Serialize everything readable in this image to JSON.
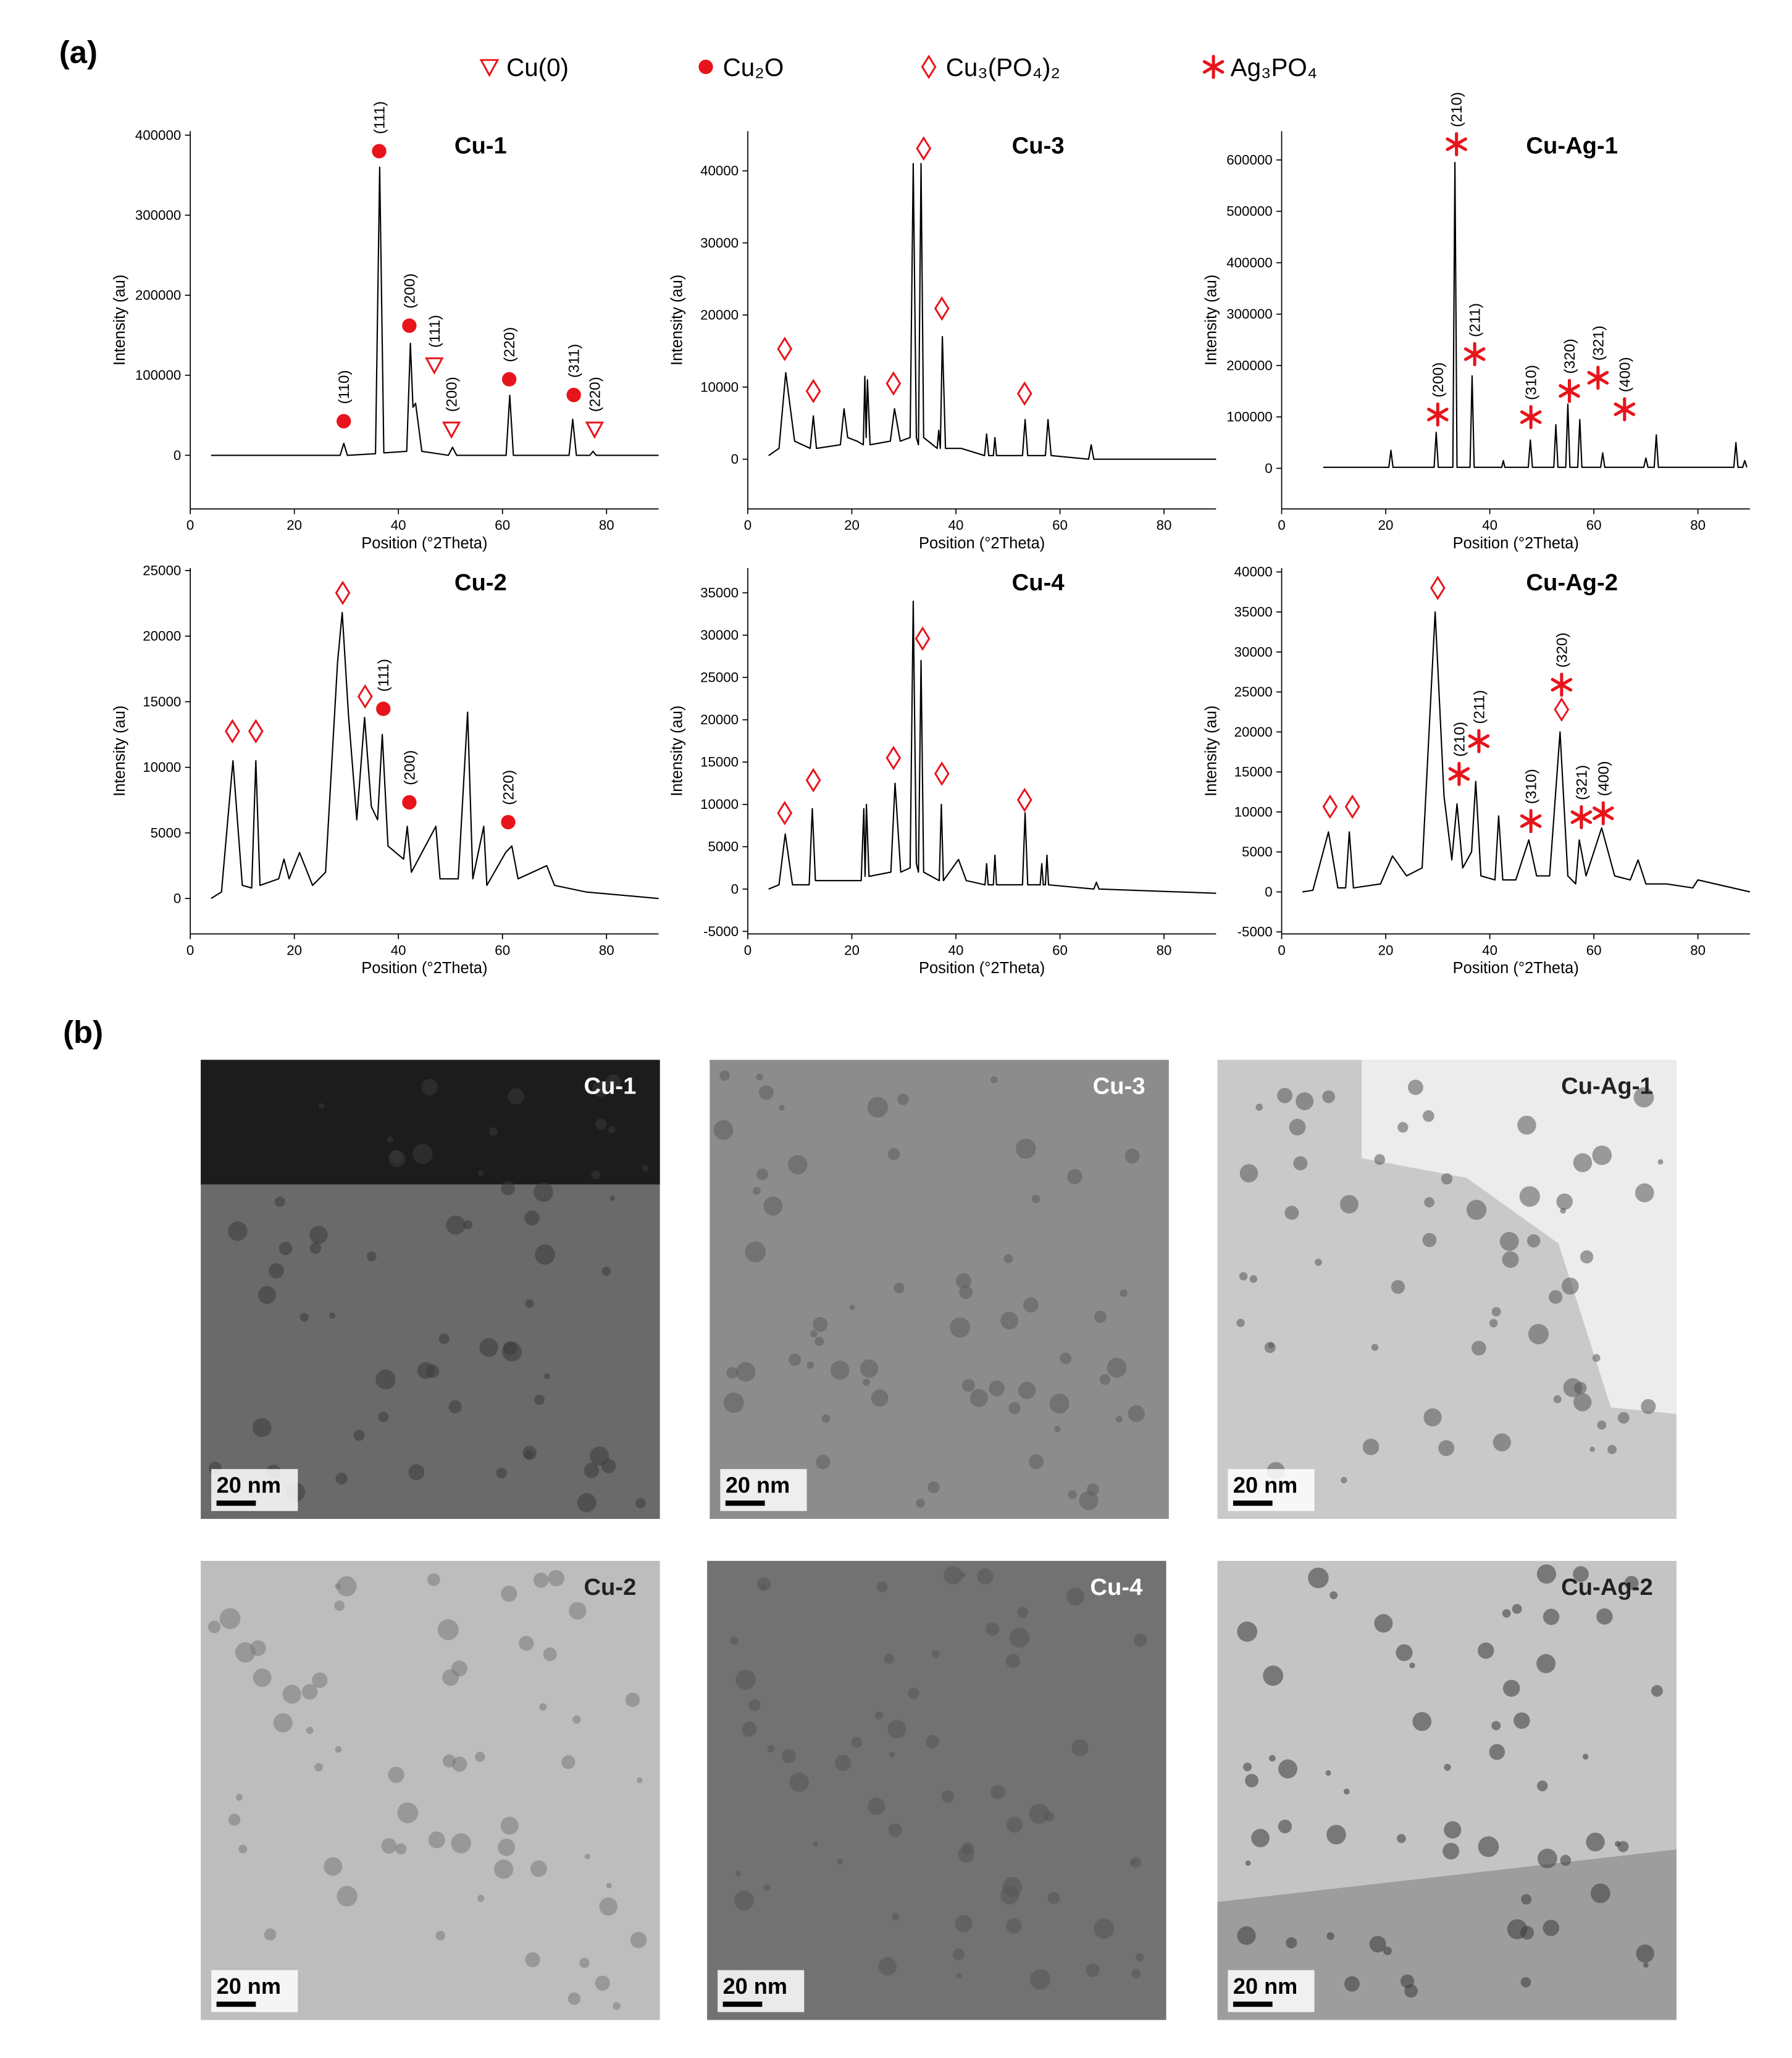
{
  "panel_labels": [
    "(a)",
    "(b)"
  ],
  "marker_color": "#e8141b",
  "legend": [
    {
      "marker": "triangle",
      "label": "Cu(0)"
    },
    {
      "marker": "circle",
      "label": "Cu₂O"
    },
    {
      "marker": "diamond",
      "label": "Cu₃(PO₄)₂"
    },
    {
      "marker": "asterisk",
      "label": "Ag₃PO₄"
    }
  ],
  "chart_data": [
    {
      "type": "line",
      "title": "Cu-1",
      "x_label": "Position (°2Theta)",
      "y_label": "Intensity (au)",
      "color": "#000000",
      "xlim": [
        0,
        90
      ],
      "xticks": [
        0,
        20,
        40,
        60,
        80
      ],
      "ylim": [
        -67000,
        405000
      ],
      "yticks": [
        0,
        100000,
        200000,
        300000,
        400000
      ],
      "x": [
        4,
        28.8,
        29.5,
        30.2,
        35.6,
        36.4,
        37.2,
        41.6,
        42.3,
        42.8,
        43.3,
        44.5,
        49.6,
        50.4,
        51.2,
        60.7,
        61.4,
        62.1,
        72.8,
        73.5,
        74.2,
        76.8,
        77.4,
        78,
        90
      ],
      "values": [
        0,
        0,
        15000,
        0,
        2000,
        360000,
        3000,
        5000,
        140000,
        60000,
        65000,
        5000,
        0,
        10000,
        0,
        0,
        75000,
        0,
        0,
        45000,
        0,
        0,
        5000,
        0,
        0
      ],
      "annotations": [
        {
          "x": 29.5,
          "y": 42600,
          "phase": 1,
          "label": "(110)"
        },
        {
          "x": 36.3,
          "y": 380000,
          "phase": 1,
          "label": "(111)"
        },
        {
          "x": 42.1,
          "y": 162000,
          "phase": 1,
          "label": "(200)"
        },
        {
          "x": 46.9,
          "y": 113000,
          "phase": 0,
          "label": "(111)"
        },
        {
          "x": 50.2,
          "y": 32800,
          "phase": 0,
          "label": "(200)"
        },
        {
          "x": 61.3,
          "y": 95000,
          "phase": 1,
          "label": "(220)"
        },
        {
          "x": 73.7,
          "y": 75400,
          "phase": 1,
          "label": "(311)"
        },
        {
          "x": 77.7,
          "y": 32800,
          "phase": 0,
          "label": "(220)"
        }
      ]
    },
    {
      "type": "line",
      "title": "Cu-3",
      "x_label": "Position (°2Theta)",
      "y_label": "Intensity (au)",
      "color": "#000000",
      "xlim": [
        0,
        90
      ],
      "xticks": [
        0,
        20,
        40,
        60,
        80
      ],
      "ylim": [
        -6900,
        45500
      ],
      "yticks": [
        0,
        10000,
        20000,
        30000,
        40000
      ],
      "x": [
        4,
        6,
        7.3,
        9,
        12,
        12.6,
        13.2,
        17.8,
        18.5,
        19.2,
        21,
        22.2,
        22.5,
        22.75,
        23,
        23.5,
        27.4,
        28.2,
        29.3,
        31.2,
        31.8,
        32.4,
        32.8,
        33.3,
        33.8,
        36.4,
        36.7,
        37.0,
        37.4,
        38,
        41,
        45.5,
        45.9,
        46.3,
        47.2,
        47.5,
        47.8,
        52.8,
        53.3,
        53.8,
        57.2,
        57.7,
        58.3,
        65.5,
        66,
        66.5,
        90
      ],
      "values": [
        500,
        1500,
        12000,
        2500,
        1500,
        6000,
        1500,
        2000,
        7000,
        3000,
        2500,
        2000,
        11500,
        3000,
        11000,
        2000,
        2500,
        7000,
        2500,
        3000,
        41000,
        3000,
        2000,
        41000,
        3000,
        1500,
        4000,
        1500,
        17000,
        1500,
        1500,
        500,
        3500,
        500,
        500,
        3000,
        500,
        500,
        5500,
        500,
        500,
        5500,
        500,
        0,
        2000,
        0,
        0
      ],
      "annotations": [
        {
          "x": 7.1,
          "y": 15300,
          "phase": 2
        },
        {
          "x": 12.6,
          "y": 9450,
          "phase": 2
        },
        {
          "x": 28.0,
          "y": 10500,
          "phase": 2
        },
        {
          "x": 33.8,
          "y": 43100,
          "phase": 2
        },
        {
          "x": 37.3,
          "y": 20900,
          "phase": 2
        },
        {
          "x": 53.2,
          "y": 9100,
          "phase": 2
        }
      ]
    },
    {
      "type": "line",
      "title": "Cu-Ag-1",
      "x_label": "Position (°2Theta)",
      "y_label": "Intensity (au)",
      "color": "#000000",
      "xlim": [
        0,
        90
      ],
      "xticks": [
        0,
        20,
        40,
        60,
        80
      ],
      "ylim": [
        -79000,
        656000
      ],
      "yticks": [
        0,
        100000,
        200000,
        300000,
        400000,
        500000,
        600000
      ],
      "x": [
        8,
        20.6,
        21,
        21.4,
        29.3,
        29.7,
        30.1,
        32.9,
        33.3,
        33.7,
        36.2,
        36.6,
        37,
        42.3,
        42.6,
        42.9,
        47.4,
        47.8,
        48.2,
        52.3,
        52.7,
        53.1,
        54.6,
        55,
        55.4,
        56.9,
        57.3,
        57.7,
        61.3,
        61.7,
        62.1,
        69.6,
        70,
        70.4,
        71.6,
        72,
        72.4,
        86.9,
        87.3,
        87.7,
        88.6,
        89,
        89.4
      ],
      "values": [
        2000,
        2000,
        35000,
        2000,
        2000,
        70000,
        2000,
        2000,
        595000,
        2000,
        2000,
        180000,
        2000,
        2000,
        15000,
        2000,
        2000,
        55000,
        2000,
        2000,
        85000,
        2000,
        2000,
        125000,
        2000,
        2000,
        95000,
        2000,
        2000,
        30000,
        2000,
        2000,
        20000,
        2000,
        2000,
        65000,
        2000,
        2000,
        50000,
        2000,
        2000,
        15000,
        2000
      ],
      "annotations": [
        {
          "x": 33.6,
          "y": 630600,
          "phase": 3,
          "label": "(210)"
        },
        {
          "x": 37.1,
          "y": 222100,
          "phase": 3,
          "label": "(211)"
        },
        {
          "x": 30.0,
          "y": 104700,
          "phase": 3,
          "label": "(200)"
        },
        {
          "x": 47.9,
          "y": 99600,
          "phase": 3,
          "label": "(310)"
        },
        {
          "x": 55.3,
          "y": 150600,
          "phase": 3,
          "label": "(320)"
        },
        {
          "x": 60.8,
          "y": 176200,
          "phase": 3,
          "label": "(321)"
        },
        {
          "x": 65.9,
          "y": 114900,
          "phase": 3,
          "label": "(400)"
        }
      ]
    },
    {
      "type": "line",
      "title": "Cu-2",
      "x_label": "Position (°2Theta)",
      "y_label": "Intensity (au)",
      "color": "#000000",
      "xlim": [
        0,
        90
      ],
      "xticks": [
        0,
        20,
        40,
        60,
        80
      ],
      "ylim": [
        -2700,
        25200
      ],
      "yticks": [
        0,
        5000,
        10000,
        15000,
        20000,
        25000
      ],
      "x": [
        4,
        6,
        8.2,
        10,
        11.8,
        12.6,
        13.4,
        17,
        18,
        19,
        21,
        23.5,
        26,
        28.3,
        29.2,
        30.4,
        32,
        33.5,
        34.8,
        36,
        36.9,
        38,
        41,
        41.7,
        42.5,
        47.2,
        48,
        51.5,
        53.3,
        54.3,
        56.4,
        57,
        60.6,
        61.8,
        63,
        68.5,
        70,
        76,
        90
      ],
      "values": [
        0,
        500,
        10500,
        1000,
        800,
        10500,
        1000,
        1500,
        3000,
        1500,
        3500,
        1000,
        2000,
        18000,
        21800,
        14000,
        6000,
        13800,
        7000,
        6000,
        12500,
        4000,
        3000,
        5500,
        2000,
        5500,
        1500,
        1500,
        14200,
        1500,
        5500,
        1000,
        3500,
        4000,
        1500,
        2500,
        1000,
        500,
        0
      ],
      "annotations": [
        {
          "x": 8.1,
          "y": 12750,
          "phase": 2
        },
        {
          "x": 12.6,
          "y": 12750,
          "phase": 2
        },
        {
          "x": 29.3,
          "y": 23300,
          "phase": 2
        },
        {
          "x": 33.6,
          "y": 15400,
          "phase": 2
        },
        {
          "x": 37.1,
          "y": 14460,
          "phase": 1,
          "label": "(111)"
        },
        {
          "x": 42.1,
          "y": 7330,
          "phase": 1,
          "label": "(200)"
        },
        {
          "x": 61.1,
          "y": 5820,
          "phase": 1,
          "label": "(220)"
        }
      ]
    },
    {
      "type": "line",
      "title": "Cu-4",
      "x_label": "Position (°2Theta)",
      "y_label": "Intensity (au)",
      "color": "#000000",
      "xlim": [
        0,
        90
      ],
      "xticks": [
        0,
        20,
        40,
        60,
        80
      ],
      "ylim": [
        -5300,
        37940
      ],
      "yticks": [
        -5000,
        0,
        5000,
        10000,
        15000,
        20000,
        25000,
        30000,
        35000
      ],
      "x": [
        4,
        6,
        7.2,
        8.6,
        11.8,
        12.4,
        13,
        21.8,
        22.3,
        22.55,
        22.8,
        23.3,
        27.5,
        28.3,
        29.4,
        31.2,
        31.8,
        32.4,
        32.8,
        33.3,
        33.8,
        36.8,
        37.2,
        37.6,
        40.5,
        42,
        45.6,
        45.9,
        46.2,
        47.2,
        47.5,
        47.8,
        52.8,
        53.3,
        53.8,
        56.2,
        56.5,
        56.8,
        57.2,
        57.5,
        57.8,
        66.5,
        67,
        67.5,
        90
      ],
      "values": [
        0,
        500,
        6500,
        500,
        500,
        9500,
        1000,
        1000,
        9500,
        1500,
        10000,
        1500,
        2000,
        12500,
        2000,
        2500,
        34000,
        3000,
        2000,
        27000,
        2000,
        1000,
        10000,
        1000,
        3500,
        1000,
        500,
        3000,
        500,
        500,
        4000,
        500,
        500,
        9000,
        500,
        500,
        3000,
        500,
        500,
        4000,
        500,
        0,
        800,
        0,
        -500
      ],
      "annotations": [
        {
          "x": 7.1,
          "y": 8980,
          "phase": 2
        },
        {
          "x": 12.6,
          "y": 12860,
          "phase": 2
        },
        {
          "x": 28.0,
          "y": 15490,
          "phase": 2
        },
        {
          "x": 33.6,
          "y": 29590,
          "phase": 2
        },
        {
          "x": 37.3,
          "y": 13630,
          "phase": 2
        },
        {
          "x": 53.2,
          "y": 10530,
          "phase": 2
        }
      ]
    },
    {
      "type": "line",
      "title": "Cu-Ag-2",
      "x_label": "Position (°2Theta)",
      "y_label": "Intensity (au)",
      "color": "#000000",
      "xlim": [
        0,
        90
      ],
      "xticks": [
        0,
        20,
        40,
        60,
        80
      ],
      "ylim": [
        -5250,
        40500
      ],
      "yticks": [
        -5000,
        0,
        5000,
        10000,
        15000,
        20000,
        25000,
        30000,
        35000,
        40000
      ],
      "x": [
        4,
        6,
        9,
        10.8,
        12.3,
        13,
        13.8,
        19,
        21.3,
        24,
        27,
        29.5,
        31.2,
        32.7,
        33.7,
        34.8,
        36.5,
        37.3,
        38.3,
        41,
        41.7,
        42.5,
        45,
        47.5,
        49,
        51.5,
        53.5,
        55,
        56.5,
        57.2,
        58.5,
        61.5,
        64,
        67,
        68.5,
        70,
        74,
        79,
        80,
        90
      ],
      "values": [
        0,
        200,
        7500,
        500,
        500,
        7500,
        500,
        1000,
        4500,
        2000,
        3000,
        35000,
        12000,
        4000,
        11000,
        3000,
        5000,
        13800,
        2000,
        1500,
        9500,
        1500,
        1500,
        6500,
        2000,
        2000,
        20000,
        2000,
        1000,
        6500,
        2000,
        8000,
        2000,
        1500,
        4000,
        1000,
        1000,
        500,
        1500,
        0
      ],
      "annotations": [
        {
          "x": 9.3,
          "y": 10650,
          "phase": 2
        },
        {
          "x": 13.6,
          "y": 10650,
          "phase": 2
        },
        {
          "x": 30.0,
          "y": 38000,
          "phase": 2
        },
        {
          "x": 53.8,
          "y": 22800,
          "phase": 2
        },
        {
          "x": 34.1,
          "y": 14750,
          "phase": 3,
          "label": "(210)"
        },
        {
          "x": 37.9,
          "y": 18850,
          "phase": 3,
          "label": "(211)"
        },
        {
          "x": 47.9,
          "y": 8850,
          "phase": 3,
          "label": "(310)"
        },
        {
          "x": 53.8,
          "y": 25900,
          "phase": 3,
          "label": "(320)"
        },
        {
          "x": 57.6,
          "y": 9340,
          "phase": 3,
          "label": "(321)"
        },
        {
          "x": 61.8,
          "y": 9830,
          "phase": 3,
          "label": "(400)"
        }
      ]
    }
  ],
  "images": [
    {
      "label": "Cu-1",
      "scale_bar": "20 nm"
    },
    {
      "label": "Cu-3",
      "scale_bar": "20 nm"
    },
    {
      "label": "Cu-Ag-1",
      "scale_bar": "20 nm"
    },
    {
      "label": "Cu-2",
      "scale_bar": "20 nm"
    },
    {
      "label": "Cu-4",
      "scale_bar": "20 nm"
    },
    {
      "label": "Cu-Ag-2",
      "scale_bar": "20 nm"
    }
  ]
}
